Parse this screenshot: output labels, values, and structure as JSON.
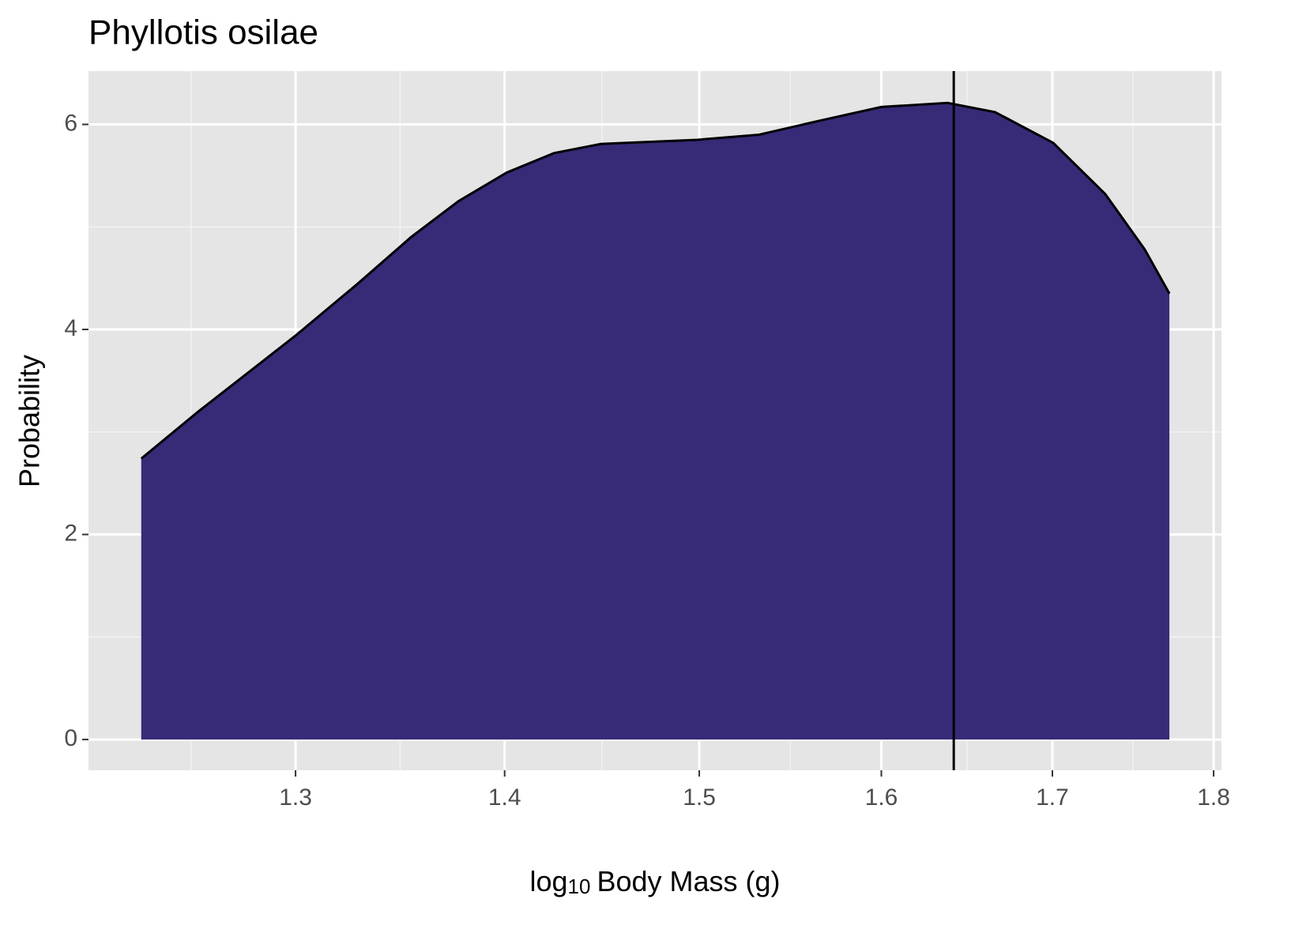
{
  "chart_data": {
    "type": "area",
    "title": "Phyllotis osilae",
    "xlabel": {
      "base": "log",
      "subscript": "10",
      "rest": "Body Mass (g)"
    },
    "ylabel": "Probability",
    "x": [
      1.2308,
      1.256,
      1.3,
      1.3286,
      1.3543,
      1.3772,
      1.401,
      1.4247,
      1.4488,
      1.499,
      1.5322,
      1.5663,
      1.6,
      1.638,
      1.6658,
      1.7005,
      1.7322,
      1.7566,
      1.772
    ],
    "values": [
      2.74,
      3.2,
      3.94,
      4.44,
      4.9,
      5.25,
      5.53,
      5.72,
      5.81,
      5.85,
      5.9,
      6.04,
      6.17,
      6.21,
      6.12,
      5.82,
      5.32,
      4.78,
      4.35
    ],
    "color": "#372a77",
    "vline": 1.6416,
    "xlog": true,
    "xlim": [
      1.208,
      1.805
    ],
    "ylim": [
      -0.3,
      6.52
    ],
    "xticks": [
      1.3,
      1.4,
      1.5,
      1.6,
      1.7,
      1.8
    ],
    "yticks": [
      0,
      2,
      4,
      6
    ],
    "grid": true
  }
}
